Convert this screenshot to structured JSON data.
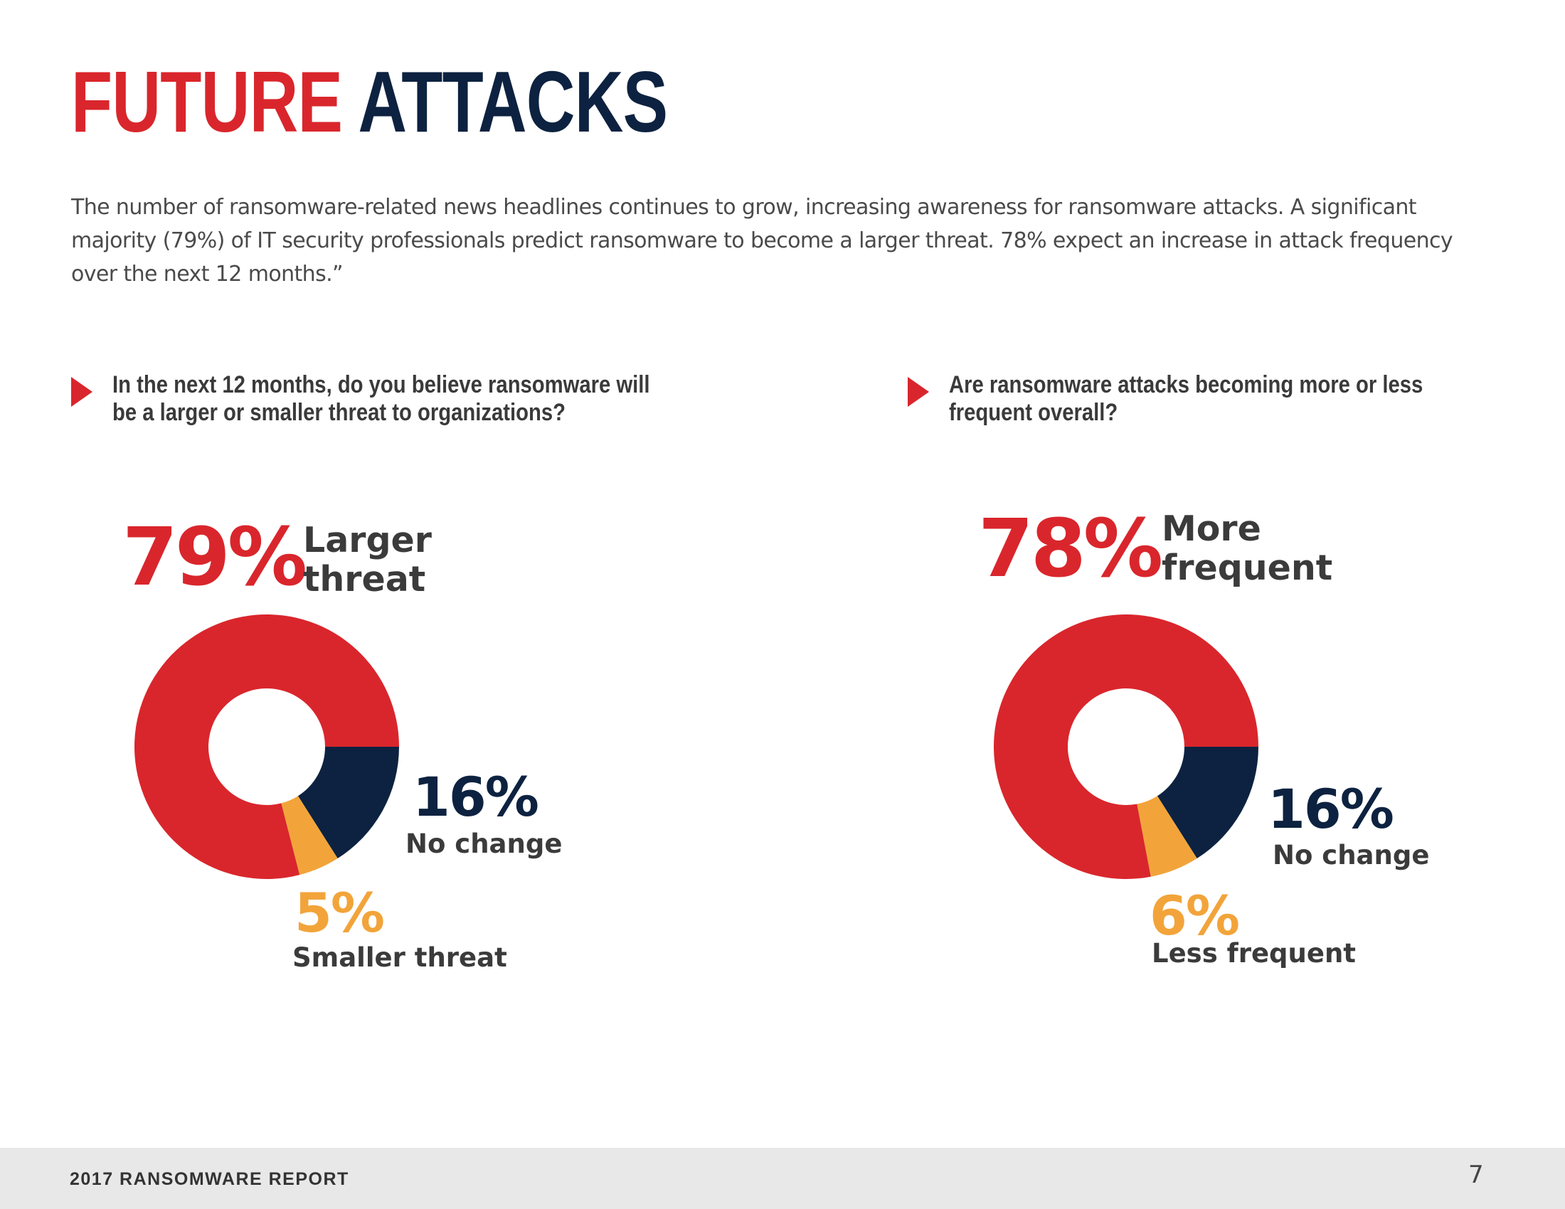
{
  "title": {
    "word1": "FUTURE",
    "word2": "ATTACKS"
  },
  "intro": "The number of ransomware-related news headlines continues to grow, increasing awareness for ransomware attacks. A significant majority (79%) of IT security professionals predict ransomware to become a larger threat. 78% expect an increase in attack frequency over the next 12 months.”",
  "colors": {
    "red": "#d9262c",
    "navy": "#0d2240",
    "orange": "#f2a43a"
  },
  "footer": {
    "report": "2017 RANSOMWARE REPORT",
    "page": "7"
  },
  "chart_data": [
    {
      "type": "pie",
      "variant": "donut",
      "title": "In the next 12 months, do you believe ransomware will be a larger or smaller threat to organizations?",
      "categories": [
        "Larger threat",
        "No change",
        "Smaller threat"
      ],
      "values": [
        79,
        16,
        5
      ],
      "colors": [
        "#d9262c",
        "#0d2240",
        "#f2a43a"
      ],
      "labels": {
        "main_pct": "79%",
        "main_line1": "Larger",
        "main_line2": "threat",
        "second_pct": "16%",
        "second_label": "No change",
        "third_pct": "5%",
        "third_label": "Smaller threat"
      }
    },
    {
      "type": "pie",
      "variant": "donut",
      "title": "Are ransomware attacks becoming more or less frequent overall?",
      "categories": [
        "More frequent",
        "No change",
        "Less frequent"
      ],
      "values": [
        78,
        16,
        6
      ],
      "colors": [
        "#d9262c",
        "#0d2240",
        "#f2a43a"
      ],
      "labels": {
        "main_pct": "78%",
        "main_line1": "More",
        "main_line2": "frequent",
        "second_pct": "16%",
        "second_label": "No change",
        "third_pct": "6%",
        "third_label": "Less frequent"
      }
    }
  ]
}
